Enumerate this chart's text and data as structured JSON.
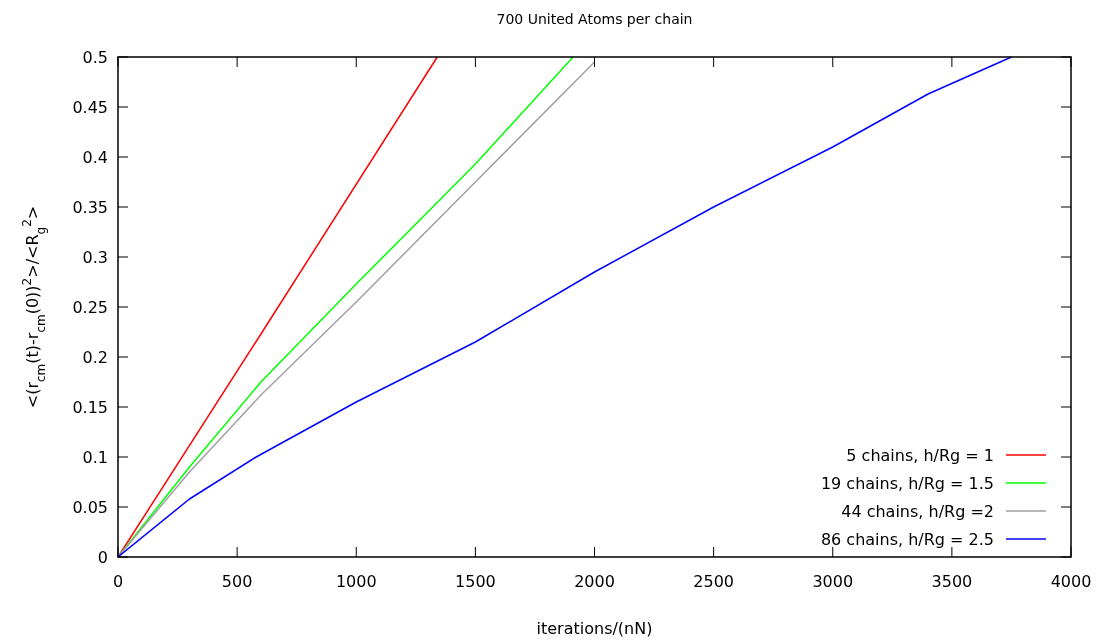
{
  "chart_data": {
    "type": "line",
    "title": "700 United Atoms per chain",
    "xlabel": "iterations/(nN)",
    "ylabel": "<(r$_{cm}$(t)-r$_{cm}$(0))$^{2}$>/<R$_{g}$$^{2}$>",
    "xlim": [
      0,
      4000
    ],
    "xticks": [
      0,
      500,
      1000,
      1500,
      2000,
      2500,
      3000,
      3500,
      4000
    ],
    "ylim": [
      0,
      0.5
    ],
    "yticks": [
      0,
      0.05,
      0.1,
      0.15,
      0.2,
      0.25,
      0.3,
      0.35,
      0.4,
      0.45,
      0.5
    ],
    "grid": false,
    "legend": "bottom right",
    "marker": "none",
    "line_style": "solid",
    "series": [
      {
        "name": "5 chains, h/Rg = 1",
        "color": "#ff0000",
        "x": [
          0,
          600,
          1340
        ],
        "values": [
          0,
          0.223,
          0.5
        ]
      },
      {
        "name": "19 chains, h/Rg = 1.5",
        "color": "#00ff00",
        "x": [
          0,
          300,
          600,
          1000,
          1500,
          1910
        ],
        "values": [
          0,
          0.09,
          0.175,
          0.273,
          0.393,
          0.5
        ]
      },
      {
        "name": "44 chains, h/Rg =2",
        "color": "#a0a0a4",
        "x": [
          0,
          300,
          600,
          1000,
          1500,
          2000
        ],
        "values": [
          0,
          0.085,
          0.162,
          0.255,
          0.375,
          0.495
        ]
      },
      {
        "name": "86 chains, h/Rg = 2.5",
        "color": "#0000ff",
        "x": [
          0,
          300,
          580,
          1000,
          1500,
          2000,
          2500,
          3000,
          3400,
          3750
        ],
        "values": [
          0,
          0.058,
          0.1,
          0.155,
          0.215,
          0.285,
          0.35,
          0.41,
          0.463,
          0.5
        ]
      }
    ]
  }
}
